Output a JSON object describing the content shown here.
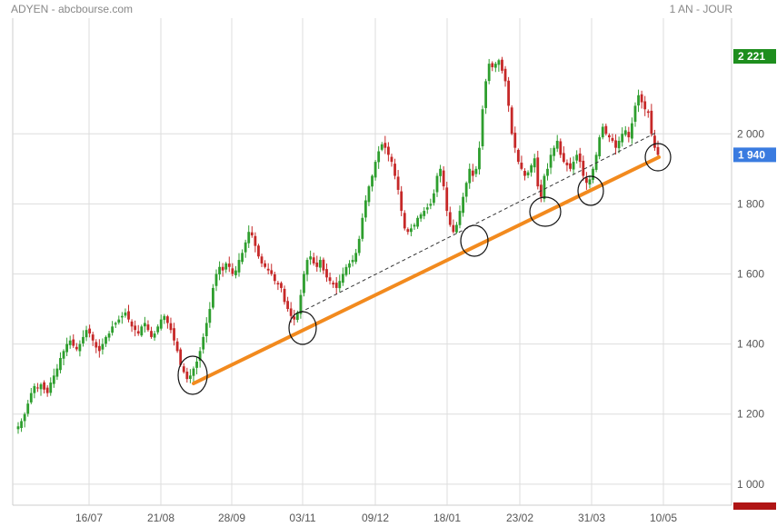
{
  "header": {
    "title": "ADYEN - abcbourse.com",
    "period": "1 AN - JOUR"
  },
  "colors": {
    "up": "#2e9e2e",
    "down": "#c62828",
    "trendline": "#f28a1e",
    "grid": "#dddddd",
    "tag_high": "#1e8e1e",
    "tag_last": "#3a7be0",
    "tag_low": "#b01515"
  },
  "chart_data": {
    "type": "candlestick",
    "title": "",
    "xlabel": "",
    "ylabel": "",
    "ylim": [
      940,
      2330
    ],
    "grid": true,
    "y_ticks": [
      1000,
      1200,
      1400,
      1600,
      1800,
      2000
    ],
    "y_tick_labels": [
      "1 000",
      "1 200",
      "1 400",
      "1 600",
      "1 800",
      "2 000"
    ],
    "x_tick_labels": [
      "16/07",
      "21/08",
      "28/09",
      "03/11",
      "09/12",
      "18/01",
      "23/02",
      "31/03",
      "10/05"
    ],
    "price_tags": [
      {
        "name": "high",
        "value": 2221,
        "label": "2 221"
      },
      {
        "name": "last",
        "value": 1940,
        "label": "1 940"
      }
    ],
    "close_series": [
      1165,
      1180,
      1200,
      1230,
      1260,
      1280,
      1275,
      1285,
      1270,
      1260,
      1290,
      1310,
      1330,
      1360,
      1380,
      1400,
      1410,
      1395,
      1385,
      1400,
      1420,
      1440,
      1430,
      1410,
      1390,
      1380,
      1400,
      1420,
      1430,
      1450,
      1460,
      1470,
      1480,
      1490,
      1470,
      1450,
      1440,
      1430,
      1450,
      1460,
      1440,
      1420,
      1430,
      1450,
      1470,
      1480,
      1460,
      1440,
      1410,
      1380,
      1340,
      1320,
      1300,
      1310,
      1330,
      1350,
      1380,
      1420,
      1460,
      1500,
      1560,
      1600,
      1620,
      1610,
      1630,
      1620,
      1600,
      1610,
      1640,
      1660,
      1690,
      1720,
      1710,
      1680,
      1650,
      1630,
      1620,
      1610,
      1600,
      1580,
      1570,
      1560,
      1520,
      1500,
      1480,
      1470,
      1490,
      1540,
      1600,
      1640,
      1650,
      1630,
      1620,
      1640,
      1610,
      1590,
      1580,
      1570,
      1560,
      1580,
      1600,
      1620,
      1630,
      1640,
      1660,
      1700,
      1760,
      1810,
      1850,
      1880,
      1920,
      1950,
      1970,
      1960,
      1940,
      1920,
      1880,
      1840,
      1780,
      1730,
      1720,
      1730,
      1740,
      1760,
      1770,
      1780,
      1790,
      1800,
      1830,
      1880,
      1900,
      1850,
      1780,
      1740,
      1720,
      1740,
      1780,
      1820,
      1860,
      1900,
      1880,
      1900,
      1960,
      2070,
      2150,
      2200,
      2190,
      2200,
      2210,
      2180,
      2150,
      2080,
      2000,
      1960,
      1920,
      1900,
      1880,
      1890,
      1910,
      1930,
      1850,
      1820,
      1880,
      1900,
      1940,
      1960,
      1980,
      1940,
      1920,
      1910,
      1900,
      1920,
      1940,
      1920,
      1880,
      1860,
      1870,
      1900,
      1940,
      1990,
      2020,
      2000,
      1990,
      1980,
      1960,
      1980,
      2000,
      2010,
      1990,
      2030,
      2080,
      2110,
      2090,
      2070,
      2060,
      2000,
      1960,
      1940
    ]
  }
}
